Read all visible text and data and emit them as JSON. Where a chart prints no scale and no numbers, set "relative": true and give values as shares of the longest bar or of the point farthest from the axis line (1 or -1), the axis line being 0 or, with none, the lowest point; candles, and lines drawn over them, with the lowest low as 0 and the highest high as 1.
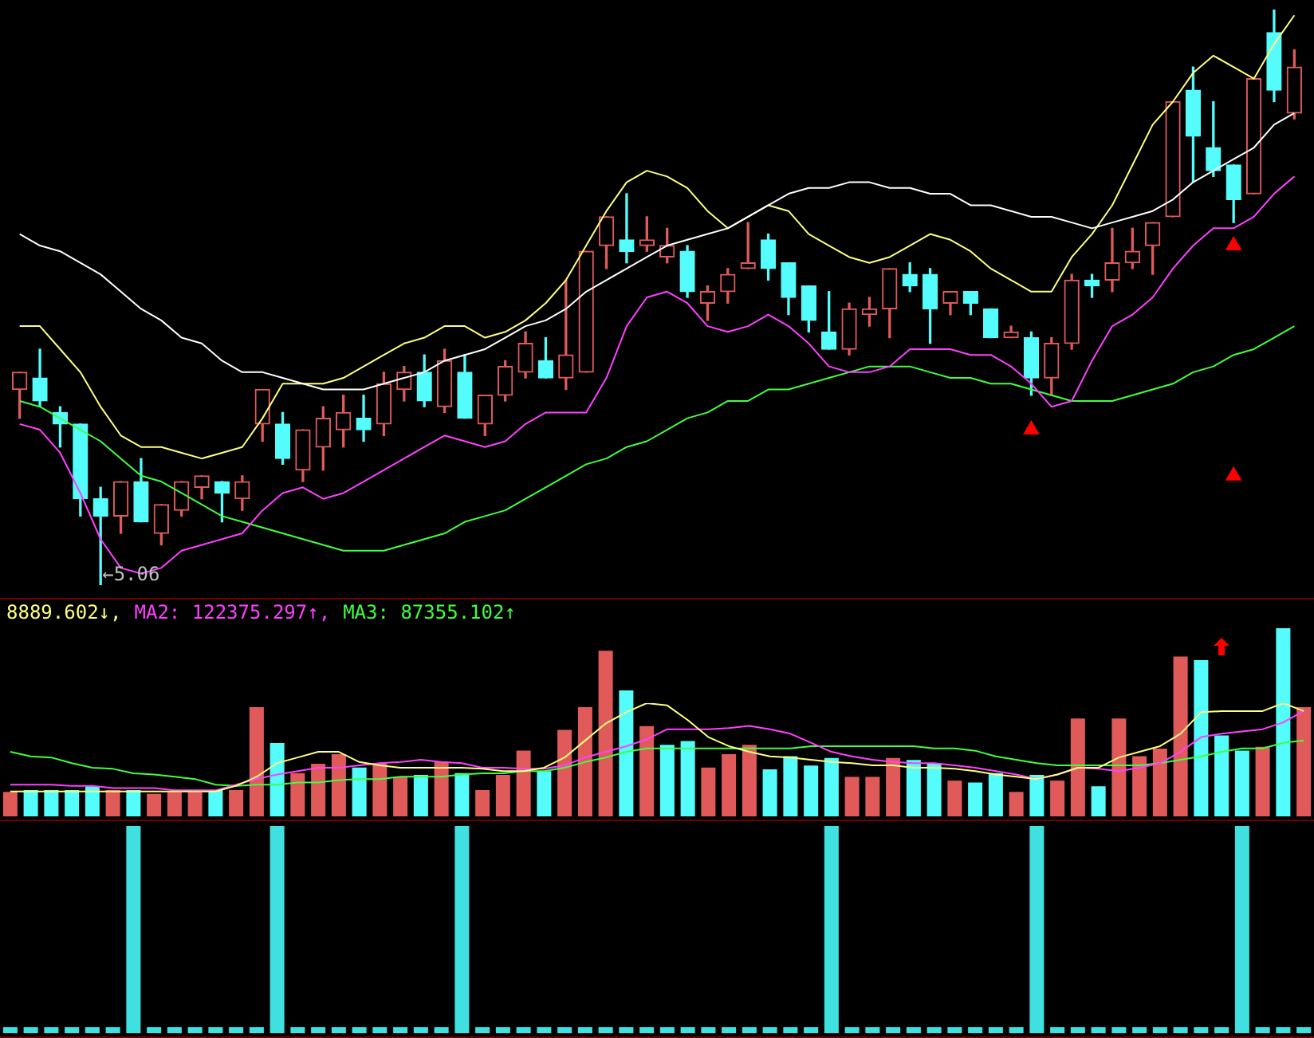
{
  "chart_data": [
    {
      "type": "candlestick",
      "relative": true,
      "categories": [
        null,
        null,
        null,
        null,
        null,
        null,
        null,
        null,
        null,
        null,
        null,
        null,
        null,
        null,
        null,
        null,
        null,
        null,
        null,
        null,
        null,
        null,
        null,
        null,
        null,
        null,
        null,
        null,
        null,
        null,
        null,
        null,
        null,
        null,
        null,
        null,
        null,
        null,
        null,
        null,
        null,
        null,
        null,
        null,
        null,
        null,
        null,
        null,
        null,
        null,
        null,
        null,
        null,
        null,
        null,
        null,
        null,
        null,
        null,
        null,
        null,
        null,
        null,
        null
      ],
      "ohlc": [
        [
          0.34,
          0.37,
          0.29,
          0.37
        ],
        [
          0.36,
          0.41,
          0.31,
          0.32
        ],
        [
          0.3,
          0.31,
          0.24,
          0.28
        ],
        [
          0.28,
          0.28,
          0.12,
          0.15
        ],
        [
          0.15,
          0.17,
          0,
          0.12
        ],
        [
          0.12,
          0.18,
          0.09,
          0.18
        ],
        [
          0.18,
          0.22,
          0.11,
          0.11
        ],
        [
          0.09,
          0.14,
          0.07,
          0.14
        ],
        [
          0.13,
          0.18,
          0.12,
          0.18
        ],
        [
          0.17,
          0.19,
          0.15,
          0.19
        ],
        [
          0.18,
          0.18,
          0.11,
          0.16
        ],
        [
          0.15,
          0.19,
          0.13,
          0.18
        ],
        [
          0.28,
          0.34,
          0.25,
          0.34
        ],
        [
          0.28,
          0.3,
          0.21,
          0.22
        ],
        [
          0.2,
          0.27,
          0.18,
          0.27
        ],
        [
          0.24,
          0.31,
          0.2,
          0.29
        ],
        [
          0.27,
          0.33,
          0.24,
          0.3
        ],
        [
          0.29,
          0.33,
          0.25,
          0.27
        ],
        [
          0.28,
          0.37,
          0.26,
          0.35
        ],
        [
          0.34,
          0.38,
          0.32,
          0.37
        ],
        [
          0.37,
          0.4,
          0.31,
          0.32
        ],
        [
          0.31,
          0.41,
          0.3,
          0.39
        ],
        [
          0.37,
          0.4,
          0.29,
          0.29
        ],
        [
          0.28,
          0.33,
          0.26,
          0.33
        ],
        [
          0.33,
          0.39,
          0.32,
          0.38
        ],
        [
          0.37,
          0.44,
          0.36,
          0.42
        ],
        [
          0.39,
          0.43,
          0.36,
          0.36
        ],
        [
          0.36,
          0.53,
          0.34,
          0.4
        ],
        [
          0.37,
          0.58,
          0.37,
          0.58
        ],
        [
          0.59,
          0.64,
          0.55,
          0.64
        ],
        [
          0.6,
          0.68,
          0.56,
          0.58
        ],
        [
          0.59,
          0.64,
          0.58,
          0.6
        ],
        [
          0.57,
          0.62,
          0.56,
          0.59
        ],
        [
          0.58,
          0.59,
          0.5,
          0.51
        ],
        [
          0.49,
          0.52,
          0.46,
          0.51
        ],
        [
          0.51,
          0.55,
          0.49,
          0.54
        ],
        [
          0.55,
          0.63,
          0.55,
          0.56
        ],
        [
          0.6,
          0.61,
          0.53,
          0.55
        ],
        [
          0.56,
          0.56,
          0.47,
          0.5
        ],
        [
          0.52,
          0.52,
          0.44,
          0.46
        ],
        [
          0.44,
          0.51,
          0.41,
          0.41
        ],
        [
          0.41,
          0.49,
          0.4,
          0.48
        ],
        [
          0.47,
          0.5,
          0.45,
          0.48
        ],
        [
          0.48,
          0.55,
          0.43,
          0.55
        ],
        [
          0.54,
          0.56,
          0.51,
          0.52
        ],
        [
          0.54,
          0.55,
          0.42,
          0.48
        ],
        [
          0.49,
          0.51,
          0.47,
          0.51
        ],
        [
          0.51,
          0.51,
          0.47,
          0.49
        ],
        [
          0.48,
          0.48,
          0.43,
          0.43
        ],
        [
          0.43,
          0.45,
          0.43,
          0.44
        ],
        [
          0.43,
          0.44,
          0.33,
          0.36
        ],
        [
          0.36,
          0.43,
          0.33,
          0.42
        ],
        [
          0.42,
          0.54,
          0.41,
          0.53
        ],
        [
          0.53,
          0.54,
          0.5,
          0.52
        ],
        [
          0.53,
          0.62,
          0.51,
          0.56
        ],
        [
          0.56,
          0.62,
          0.55,
          0.58
        ],
        [
          0.59,
          0.63,
          0.54,
          0.63
        ],
        [
          0.64,
          0.84,
          0.64,
          0.84
        ],
        [
          0.86,
          0.9,
          0.7,
          0.78
        ],
        [
          0.76,
          0.84,
          0.71,
          0.72
        ],
        [
          0.73,
          0.73,
          0.63,
          0.67
        ],
        [
          0.68,
          0.88,
          0.68,
          0.88
        ],
        [
          0.96,
          1,
          0.84,
          0.86
        ],
        [
          0.82,
          0.93,
          0.81,
          0.9
        ]
      ],
      "colors": [
        "#e05a5a",
        "#54fcfc",
        "#54fcfc",
        "#54fcfc",
        "#54fcfc",
        "#e05a5a",
        "#54fcfc",
        "#e05a5a",
        "#e05a5a",
        "#e05a5a",
        "#54fcfc",
        "#e05a5a",
        "#e05a5a",
        "#54fcfc",
        "#e05a5a",
        "#e05a5a",
        "#e05a5a",
        "#54fcfc",
        "#e05a5a",
        "#e05a5a",
        "#54fcfc",
        "#e05a5a",
        "#54fcfc",
        "#e05a5a",
        "#e05a5a",
        "#e05a5a",
        "#54fcfc",
        "#e05a5a",
        "#e05a5a",
        "#e05a5a",
        "#54fcfc",
        "#e05a5a",
        "#e05a5a",
        "#54fcfc",
        "#e05a5a",
        "#e05a5a",
        "#e05a5a",
        "#54fcfc",
        "#54fcfc",
        "#54fcfc",
        "#54fcfc",
        "#e05a5a",
        "#e05a5a",
        "#e05a5a",
        "#54fcfc",
        "#54fcfc",
        "#e05a5a",
        "#54fcfc",
        "#54fcfc",
        "#e05a5a",
        "#54fcfc",
        "#e05a5a",
        "#e05a5a",
        "#54fcfc",
        "#e05a5a",
        "#e05a5a",
        "#e05a5a",
        "#e05a5a",
        "#54fcfc",
        "#54fcfc",
        "#54fcfc",
        "#e05a5a",
        "#54fcfc",
        "#e05a5a"
      ],
      "series": [
        {
          "type": "line",
          "color": "#ffffff",
          "marker": "none",
          "values": [
            0.61,
            0.59,
            0.58,
            0.56,
            0.54,
            0.51,
            0.48,
            0.46,
            0.43,
            0.42,
            0.39,
            0.37,
            0.37,
            0.36,
            0.35,
            0.34,
            0.34,
            0.34,
            0.35,
            0.36,
            0.37,
            0.39,
            0.4,
            0.41,
            0.43,
            0.45,
            0.46,
            0.48,
            0.51,
            0.53,
            0.55,
            0.57,
            0.59,
            0.6,
            0.61,
            0.62,
            0.64,
            0.66,
            0.68,
            0.69,
            0.69,
            0.7,
            0.7,
            0.69,
            0.69,
            0.68,
            0.68,
            0.66,
            0.66,
            0.65,
            0.64,
            0.64,
            0.63,
            0.62,
            0.63,
            0.64,
            0.65,
            0.67,
            0.7,
            0.72,
            0.74,
            0.76,
            0.8,
            0.82
          ]
        },
        {
          "type": "line",
          "color": "#ffff80",
          "marker": "none",
          "values": [
            0.45,
            0.45,
            0.41,
            0.37,
            0.31,
            0.26,
            0.24,
            0.24,
            0.23,
            0.22,
            0.23,
            0.24,
            0.29,
            0.35,
            0.35,
            0.35,
            0.36,
            0.38,
            0.4,
            0.42,
            0.43,
            0.45,
            0.45,
            0.43,
            0.44,
            0.46,
            0.49,
            0.53,
            0.59,
            0.65,
            0.7,
            0.72,
            0.71,
            0.69,
            0.65,
            0.62,
            0.64,
            0.66,
            0.65,
            0.61,
            0.59,
            0.57,
            0.56,
            0.57,
            0.59,
            0.61,
            0.6,
            0.58,
            0.55,
            0.53,
            0.51,
            0.51,
            0.57,
            0.61,
            0.66,
            0.73,
            0.8,
            0.84,
            0.89,
            0.92,
            0.9,
            0.88,
            0.94,
            0.99
          ]
        },
        {
          "type": "line",
          "color": "#ff40ff",
          "marker": "none",
          "values": [
            0.28,
            0.27,
            0.23,
            0.16,
            0.08,
            0.03,
            0.02,
            0.03,
            0.06,
            0.07,
            0.08,
            0.09,
            0.13,
            0.16,
            0.17,
            0.15,
            0.16,
            0.18,
            0.2,
            0.22,
            0.24,
            0.26,
            0.25,
            0.24,
            0.25,
            0.28,
            0.3,
            0.3,
            0.3,
            0.36,
            0.45,
            0.5,
            0.51,
            0.49,
            0.45,
            0.44,
            0.45,
            0.47,
            0.45,
            0.42,
            0.38,
            0.37,
            0.37,
            0.38,
            0.41,
            0.41,
            0.41,
            0.4,
            0.4,
            0.38,
            0.35,
            0.31,
            0.32,
            0.39,
            0.45,
            0.47,
            0.5,
            0.55,
            0.59,
            0.62,
            0.62,
            0.64,
            0.68,
            0.71
          ]
        },
        {
          "type": "line",
          "color": "#40ff40",
          "marker": "none",
          "values": [
            0.32,
            0.31,
            0.29,
            0.27,
            0.25,
            0.22,
            0.19,
            0.18,
            0.16,
            0.14,
            0.12,
            0.11,
            0.1,
            0.09,
            0.08,
            0.07,
            0.06,
            0.06,
            0.06,
            0.07,
            0.08,
            0.09,
            0.11,
            0.12,
            0.13,
            0.15,
            0.17,
            0.19,
            0.21,
            0.22,
            0.24,
            0.25,
            0.27,
            0.29,
            0.3,
            0.32,
            0.32,
            0.34,
            0.34,
            0.35,
            0.36,
            0.37,
            0.38,
            0.38,
            0.38,
            0.37,
            0.36,
            0.36,
            0.35,
            0.35,
            0.34,
            0.33,
            0.32,
            0.32,
            0.32,
            0.33,
            0.34,
            0.35,
            0.37,
            0.38,
            0.4,
            0.41,
            0.43,
            0.45
          ]
        },
        {
          "type": "scatter",
          "color": "#ff0000",
          "marker": "triangle",
          "values": [
            null,
            null,
            null,
            null,
            null,
            null,
            null,
            null,
            null,
            null,
            null,
            null,
            null,
            null,
            null,
            null,
            null,
            null,
            null,
            null,
            null,
            null,
            null,
            null,
            null,
            null,
            null,
            null,
            null,
            null,
            null,
            null,
            null,
            null,
            null,
            null,
            null,
            null,
            null,
            null,
            null,
            null,
            null,
            null,
            null,
            null,
            null,
            null,
            null,
            null,
            0.27,
            null,
            null,
            null,
            null,
            null,
            null,
            null,
            null,
            null,
            0.59,
            null,
            null,
            null
          ]
        },
        {
          "type": "scatter",
          "color": "#ff0000",
          "marker": "triangle",
          "values": [
            null,
            null,
            null,
            null,
            null,
            null,
            null,
            null,
            null,
            null,
            null,
            null,
            null,
            null,
            null,
            null,
            null,
            null,
            null,
            null,
            null,
            null,
            null,
            null,
            null,
            null,
            null,
            null,
            null,
            null,
            null,
            null,
            null,
            null,
            null,
            null,
            null,
            null,
            null,
            null,
            null,
            null,
            null,
            null,
            null,
            null,
            null,
            null,
            null,
            null,
            null,
            null,
            null,
            null,
            null,
            null,
            null,
            null,
            null,
            null,
            0.19,
            null,
            null,
            null
          ]
        }
      ],
      "annotations": [
        "←5.06"
      ]
    },
    {
      "type": "bar",
      "relative": true,
      "categories": [
        null,
        null,
        null,
        null,
        null,
        null,
        null,
        null,
        null,
        null,
        null,
        null,
        null,
        null,
        null,
        null,
        null,
        null,
        null,
        null,
        null,
        null,
        null,
        null,
        null,
        null,
        null,
        null,
        null,
        null,
        null,
        null,
        null,
        null,
        null,
        null,
        null,
        null,
        null,
        null,
        null,
        null,
        null,
        null,
        null,
        null,
        null,
        null,
        null,
        null,
        null,
        null,
        null,
        null,
        null,
        null,
        null,
        null,
        null,
        null,
        null,
        null,
        null,
        null
      ],
      "series": [
        {
          "type": "bar",
          "colors": [
            "#e05a5a",
            "#54fcfc",
            "#54fcfc",
            "#54fcfc",
            "#54fcfc",
            "#e05a5a",
            "#54fcfc",
            "#e05a5a",
            "#e05a5a",
            "#e05a5a",
            "#54fcfc",
            "#e05a5a",
            "#e05a5a",
            "#54fcfc",
            "#e05a5a",
            "#e05a5a",
            "#e05a5a",
            "#54fcfc",
            "#e05a5a",
            "#e05a5a",
            "#54fcfc",
            "#e05a5a",
            "#54fcfc",
            "#e05a5a",
            "#e05a5a",
            "#e05a5a",
            "#54fcfc",
            "#e05a5a",
            "#e05a5a",
            "#e05a5a",
            "#54fcfc",
            "#e05a5a",
            "#54fcfc",
            "#54fcfc",
            "#e05a5a",
            "#e05a5a",
            "#e05a5a",
            "#54fcfc",
            "#54fcfc",
            "#54fcfc",
            "#54fcfc",
            "#e05a5a",
            "#e05a5a",
            "#e05a5a",
            "#54fcfc",
            "#54fcfc",
            "#e05a5a",
            "#54fcfc",
            "#54fcfc",
            "#e05a5a",
            "#54fcfc",
            "#e05a5a",
            "#e05a5a",
            "#54fcfc",
            "#e05a5a",
            "#e05a5a",
            "#e05a5a",
            "#e05a5a",
            "#54fcfc",
            "#54fcfc",
            "#54fcfc",
            "#e05a5a",
            "#54fcfc",
            "#e05a5a"
          ],
          "values": [
            0.13,
            0.14,
            0.14,
            0.14,
            0.16,
            0.14,
            0.14,
            0.12,
            0.13,
            0.13,
            0.14,
            0.14,
            0.58,
            0.39,
            0.23,
            0.28,
            0.33,
            0.26,
            0.28,
            0.21,
            0.22,
            0.29,
            0.23,
            0.14,
            0.22,
            0.35,
            0.24,
            0.46,
            0.58,
            0.88,
            0.67,
            0.48,
            0.38,
            0.4,
            0.26,
            0.33,
            0.38,
            0.25,
            0.32,
            0.27,
            0.31,
            0.21,
            0.21,
            0.31,
            0.3,
            0.28,
            0.19,
            0.18,
            0.23,
            0.13,
            0.22,
            0.19,
            0.52,
            0.16,
            0.52,
            0.32,
            0.36,
            0.85,
            0.83,
            0.43,
            0.35,
            0.37,
            1,
            0.58
          ]
        }
      ]
    },
    {
      "type": "line",
      "relative": true,
      "categories": [
        null,
        null,
        null,
        null,
        null,
        null,
        null,
        null,
        null,
        null,
        null,
        null,
        null,
        null,
        null,
        null,
        null,
        null,
        null,
        null,
        null,
        null,
        null,
        null,
        null,
        null,
        null,
        null,
        null,
        null,
        null,
        null,
        null,
        null,
        null,
        null,
        null,
        null,
        null,
        null,
        null,
        null,
        null,
        null,
        null,
        null,
        null,
        null,
        null,
        null,
        null,
        null,
        null,
        null,
        null,
        null,
        null,
        null,
        null,
        null,
        null,
        null,
        null,
        null
      ],
      "series": [
        {
          "name": "8889.602↓,",
          "color": "#ffff80",
          "marker": "none",
          "values": [
            0.22,
            0.22,
            0.22,
            0.22,
            0.22,
            0.22,
            0.22,
            0.22,
            0.22,
            0.22,
            0.22,
            0.27,
            0.35,
            0.47,
            0.52,
            0.57,
            0.57,
            0.48,
            0.45,
            0.43,
            0.43,
            0.43,
            0.43,
            0.42,
            0.4,
            0.4,
            0.43,
            0.52,
            0.67,
            0.82,
            0.92,
            1,
            0.98,
            0.85,
            0.7,
            0.62,
            0.57,
            0.53,
            0.52,
            0.5,
            0.48,
            0.47,
            0.45,
            0.45,
            0.43,
            0.43,
            0.42,
            0.4,
            0.37,
            0.35,
            0.33,
            0.37,
            0.43,
            0.43,
            0.52,
            0.57,
            0.62,
            0.73,
            0.92,
            0.93,
            0.93,
            0.93,
            1,
            0.93
          ]
        },
        {
          "name": "MA2: 122375.297↑,",
          "color": "#ff40ff",
          "marker": "none",
          "values": [
            0.28,
            0.28,
            0.28,
            0.27,
            0.27,
            0.25,
            0.25,
            0.25,
            0.23,
            0.23,
            0.23,
            0.28,
            0.33,
            0.37,
            0.4,
            0.43,
            0.43,
            0.45,
            0.47,
            0.48,
            0.5,
            0.48,
            0.47,
            0.43,
            0.43,
            0.42,
            0.42,
            0.45,
            0.52,
            0.57,
            0.62,
            0.68,
            0.77,
            0.77,
            0.77,
            0.78,
            0.8,
            0.77,
            0.73,
            0.65,
            0.57,
            0.53,
            0.5,
            0.48,
            0.47,
            0.47,
            0.45,
            0.43,
            0.4,
            0.37,
            0.33,
            0.37,
            0.43,
            0.42,
            0.4,
            0.43,
            0.47,
            0.57,
            0.7,
            0.73,
            0.75,
            0.77,
            0.83,
            0.93
          ]
        },
        {
          "name": "MA3: 87355.102↑",
          "color": "#40ff40",
          "marker": "none",
          "values": [
            0.57,
            0.53,
            0.52,
            0.47,
            0.43,
            0.42,
            0.38,
            0.37,
            0.35,
            0.33,
            0.28,
            0.27,
            0.28,
            0.28,
            0.3,
            0.3,
            0.32,
            0.33,
            0.33,
            0.35,
            0.35,
            0.35,
            0.37,
            0.38,
            0.38,
            0.4,
            0.4,
            0.43,
            0.48,
            0.52,
            0.57,
            0.6,
            0.6,
            0.6,
            0.6,
            0.6,
            0.6,
            0.6,
            0.6,
            0.62,
            0.62,
            0.62,
            0.62,
            0.62,
            0.62,
            0.6,
            0.6,
            0.58,
            0.53,
            0.5,
            0.47,
            0.45,
            0.45,
            0.45,
            0.45,
            0.45,
            0.47,
            0.5,
            0.53,
            0.57,
            0.6,
            0.6,
            0.65,
            0.67
          ]
        }
      ]
    },
    {
      "type": "bar",
      "relative": true,
      "color": "#40e0e0",
      "categories": [
        null,
        null,
        null,
        null,
        null,
        null,
        null,
        null,
        null,
        null,
        null,
        null,
        null,
        null,
        null,
        null,
        null,
        null,
        null,
        null,
        null,
        null,
        null,
        null,
        null,
        null,
        null,
        null,
        null,
        null,
        null,
        null,
        null,
        null,
        null,
        null,
        null,
        null,
        null,
        null,
        null,
        null,
        null,
        null,
        null,
        null,
        null,
        null,
        null,
        null,
        null,
        null,
        null,
        null,
        null,
        null,
        null,
        null,
        null,
        null,
        null,
        null,
        null,
        null
      ],
      "values": [
        0.03,
        0.03,
        0.03,
        0.03,
        0.03,
        0.03,
        1,
        0.03,
        0.03,
        0.03,
        0.03,
        0.03,
        0.03,
        1,
        0.03,
        0.03,
        0.03,
        0.03,
        0.03,
        0.03,
        0.03,
        0.03,
        1,
        0.03,
        0.03,
        0.03,
        0.03,
        0.03,
        0.03,
        0.03,
        0.03,
        0.03,
        0.03,
        0.03,
        0.03,
        0.03,
        0.03,
        0.03,
        0.03,
        0.03,
        1,
        0.03,
        0.03,
        0.03,
        0.03,
        0.03,
        0.03,
        0.03,
        0.03,
        0.03,
        1,
        0.03,
        0.03,
        0.03,
        0.03,
        0.03,
        0.03,
        0.03,
        0.03,
        0.03,
        1,
        0.03,
        0.03,
        0.03
      ]
    }
  ]
}
